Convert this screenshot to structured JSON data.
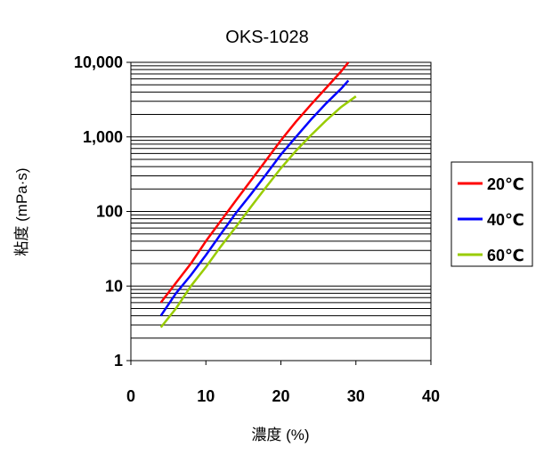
{
  "chart_data": {
    "type": "line",
    "title": "OKS-1028",
    "xlabel": "濃度 (%)",
    "ylabel": "粘度 (mPa·s)",
    "xlim": [
      0,
      40
    ],
    "ylim": [
      1,
      10000
    ],
    "y_scale": "log",
    "grid": "horizontal",
    "legend_position": "right",
    "x_ticks": [
      "0",
      "10",
      "20",
      "30",
      "40"
    ],
    "y_ticks": [
      {
        "value": 1,
        "label": "1"
      },
      {
        "value": 10,
        "label": "10"
      },
      {
        "value": 100,
        "label": "100"
      },
      {
        "value": 1000,
        "label": "1,000"
      },
      {
        "value": 10000,
        "label": "10,000"
      }
    ],
    "series": [
      {
        "name": "20℃",
        "color": "#ff0000",
        "x": [
          4,
          6,
          8,
          10,
          12,
          14,
          16,
          18,
          20,
          22,
          24,
          26,
          28,
          29
        ],
        "y": [
          6,
          11,
          20,
          40,
          75,
          140,
          260,
          480,
          900,
          1600,
          2700,
          4500,
          7500,
          10000
        ]
      },
      {
        "name": "40℃",
        "color": "#0000ff",
        "x": [
          4,
          6,
          8,
          10,
          12,
          14,
          16,
          18,
          20,
          22,
          24,
          26,
          28,
          29
        ],
        "y": [
          4,
          8,
          14,
          26,
          50,
          95,
          170,
          310,
          580,
          1000,
          1700,
          2800,
          4400,
          5700
        ]
      },
      {
        "name": "60℃",
        "color": "#99cc00",
        "x": [
          4,
          6,
          8,
          10,
          12,
          14,
          16,
          18,
          20,
          22,
          24,
          26,
          28,
          30
        ],
        "y": [
          2.8,
          5,
          10,
          18,
          34,
          62,
          115,
          210,
          380,
          650,
          1050,
          1650,
          2500,
          3500
        ]
      }
    ]
  }
}
